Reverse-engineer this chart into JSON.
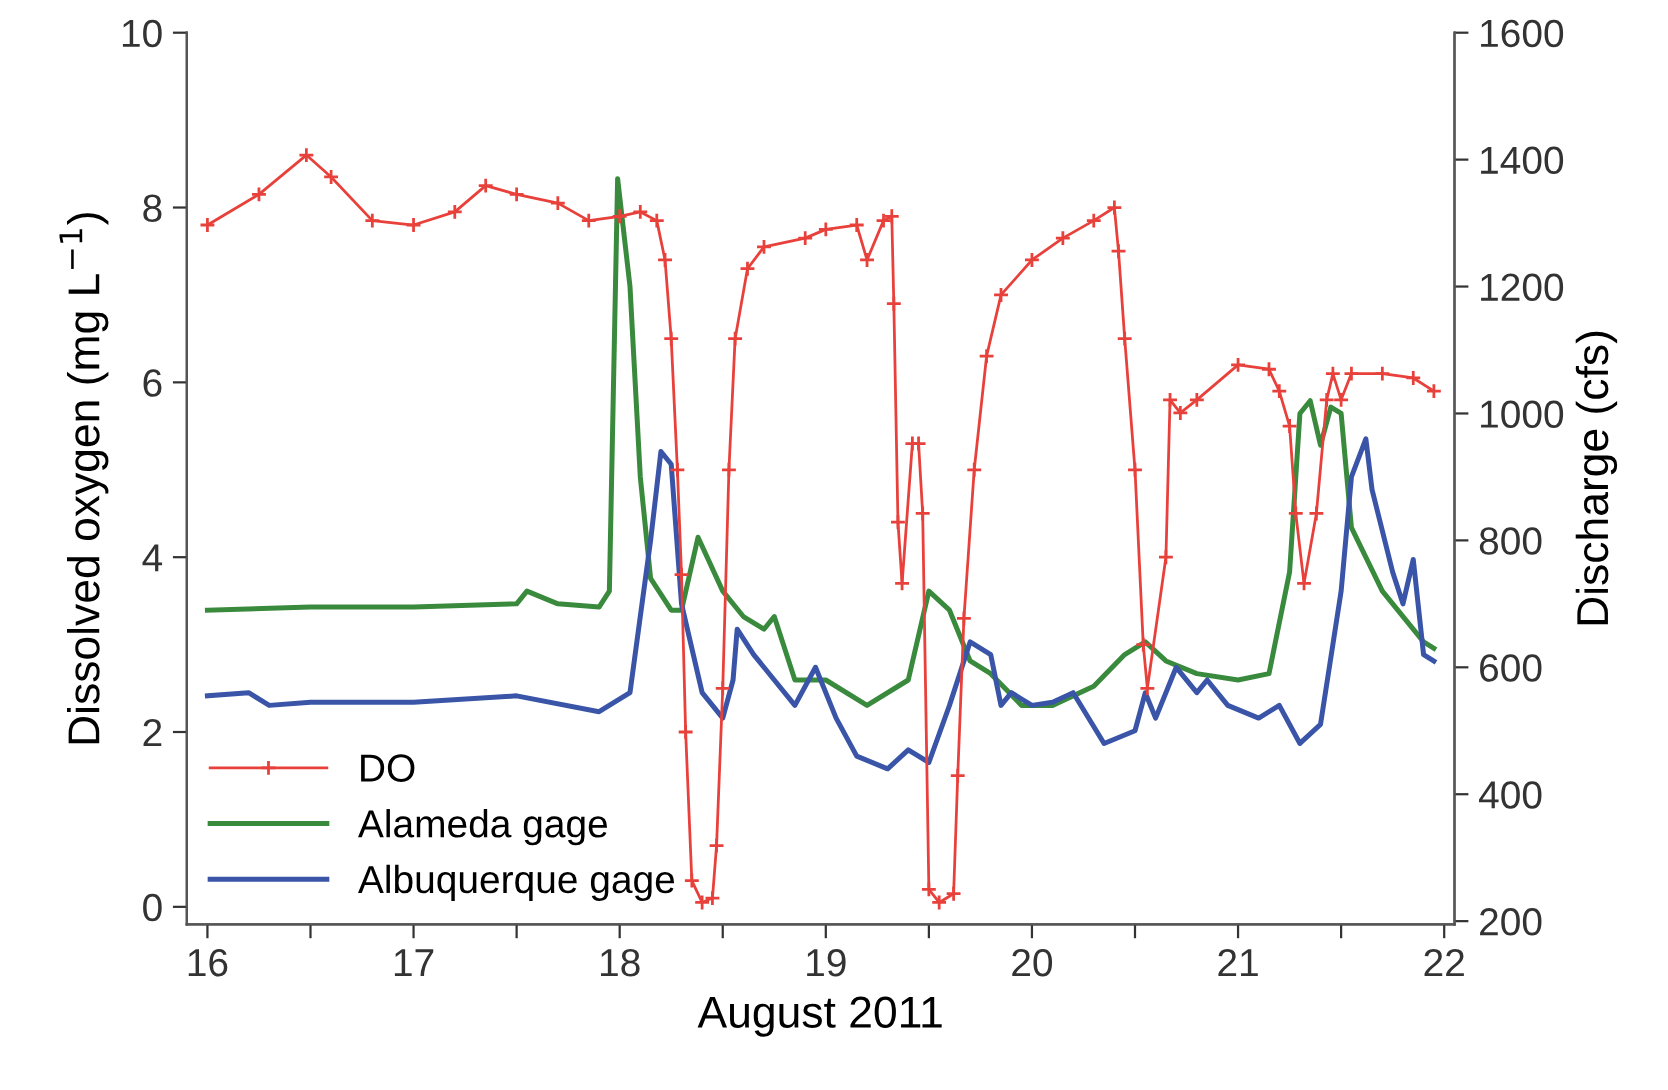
{
  "chart_data": {
    "type": "line",
    "xlabel": "August 2011",
    "ylabel": "Dissolved oxygen (mg L$^{−1}$)",
    "y2label": "Discharge (cfs)",
    "xlim": [
      15.9,
      22.05
    ],
    "xticks": [
      16,
      {
        "value": 16.5,
        "label": null
      },
      17,
      {
        "value": 17.5,
        "label": null
      },
      18,
      {
        "value": 18.5,
        "label": null
      },
      19,
      {
        "value": 19.5,
        "label": null
      },
      20,
      {
        "value": 20.5,
        "label": null
      },
      21,
      {
        "value": 21.5,
        "label": null
      },
      22
    ],
    "ylim": [
      -0.2,
      10
    ],
    "yticks": [
      0,
      2,
      4,
      6,
      8,
      10
    ],
    "y2lim": [
      195,
      1600
    ],
    "y2ticks": [
      200,
      400,
      600,
      800,
      1000,
      1200,
      1400,
      1600
    ],
    "grid": false,
    "legend": "bottom left",
    "series": [
      {
        "name": "DO",
        "color": "#e8413b",
        "marker": "cross",
        "x": [
          16.0,
          16.25,
          16.48,
          16.6,
          16.8,
          17.0,
          17.2,
          17.35,
          17.5,
          17.7,
          17.85,
          18.0,
          18.1,
          18.18,
          18.22,
          18.25,
          18.28,
          18.3,
          18.32,
          18.35,
          18.4,
          18.45,
          18.47,
          18.5,
          18.53,
          18.56,
          18.62,
          18.7,
          18.9,
          19.0,
          19.15,
          19.2,
          19.28,
          19.32,
          19.33,
          19.35,
          19.37,
          19.42,
          19.45,
          19.47,
          19.5,
          19.55,
          19.62,
          19.64,
          19.67,
          19.72,
          19.78,
          19.85,
          20.0,
          20.15,
          20.3,
          20.4,
          20.42,
          20.45,
          20.5,
          20.54,
          20.56,
          20.65,
          20.67,
          20.72,
          20.8,
          21.0,
          21.15,
          21.2,
          21.25,
          21.28,
          21.32,
          21.38,
          21.43,
          21.46,
          21.5,
          21.55,
          21.7,
          21.85,
          21.95
        ],
        "values": [
          7.8,
          8.15,
          8.6,
          8.35,
          7.85,
          7.8,
          7.95,
          8.25,
          8.15,
          8.05,
          7.85,
          7.9,
          7.95,
          7.85,
          7.4,
          6.5,
          5.0,
          3.8,
          2.0,
          0.3,
          0.05,
          0.1,
          0.7,
          2.5,
          5.0,
          6.5,
          7.3,
          7.55,
          7.65,
          7.75,
          7.8,
          7.4,
          7.85,
          7.9,
          6.9,
          4.4,
          3.7,
          5.3,
          5.3,
          4.5,
          0.2,
          0.05,
          0.15,
          1.5,
          3.3,
          5.0,
          6.3,
          7.0,
          7.4,
          7.65,
          7.85,
          8.0,
          7.5,
          6.5,
          5.0,
          3.0,
          2.5,
          4.0,
          5.8,
          5.65,
          5.8,
          6.2,
          6.15,
          5.9,
          5.5,
          4.5,
          3.7,
          4.5,
          5.8,
          6.1,
          5.8,
          6.1,
          6.1,
          6.05,
          5.9
        ]
      },
      {
        "name": "Alameda gage",
        "color": "#3a8a3e",
        "axis": "y2",
        "x": [
          16.0,
          16.5,
          17.0,
          17.5,
          17.55,
          17.7,
          17.9,
          17.95,
          17.99,
          18.05,
          18.1,
          18.15,
          18.25,
          18.3,
          18.38,
          18.5,
          18.6,
          18.7,
          18.75,
          18.85,
          19.0,
          19.2,
          19.4,
          19.5,
          19.6,
          19.7,
          19.8,
          19.95,
          20.1,
          20.3,
          20.45,
          20.55,
          20.65,
          20.8,
          21.0,
          21.15,
          21.25,
          21.3,
          21.35,
          21.4,
          21.45,
          21.5,
          21.55,
          21.7,
          21.9,
          21.95
        ],
        "values": [
          690,
          695,
          695,
          700,
          720,
          700,
          695,
          720,
          1370,
          1200,
          900,
          740,
          690,
          690,
          805,
          720,
          680,
          660,
          680,
          580,
          580,
          540,
          580,
          720,
          690,
          610,
          590,
          540,
          540,
          570,
          620,
          640,
          610,
          590,
          580,
          590,
          750,
          1000,
          1020,
          950,
          1010,
          1000,
          820,
          720,
          640,
          630
        ]
      },
      {
        "name": "Albuquerque gage",
        "color": "#3a55a8",
        "axis": "y2",
        "x": [
          16.0,
          16.2,
          16.3,
          16.5,
          17.0,
          17.5,
          17.9,
          18.05,
          18.15,
          18.2,
          18.25,
          18.3,
          18.4,
          18.5,
          18.55,
          18.57,
          18.65,
          18.75,
          18.85,
          18.95,
          19.05,
          19.15,
          19.3,
          19.4,
          19.5,
          19.6,
          19.7,
          19.8,
          19.85,
          19.9,
          20.0,
          20.1,
          20.2,
          20.35,
          20.5,
          20.55,
          20.6,
          20.7,
          20.8,
          20.85,
          20.95,
          21.1,
          21.2,
          21.3,
          21.4,
          21.5,
          21.55,
          21.62,
          21.65,
          21.75,
          21.8,
          21.85,
          21.9,
          21.95
        ],
        "values": [
          555,
          560,
          540,
          545,
          545,
          555,
          530,
          560,
          800,
          940,
          920,
          700,
          560,
          520,
          580,
          660,
          620,
          580,
          540,
          600,
          520,
          460,
          440,
          470,
          450,
          540,
          640,
          620,
          540,
          560,
          540,
          545,
          560,
          480,
          500,
          560,
          520,
          600,
          560,
          580,
          540,
          520,
          540,
          480,
          510,
          720,
          900,
          960,
          880,
          750,
          700,
          770,
          620,
          610
        ]
      }
    ]
  }
}
